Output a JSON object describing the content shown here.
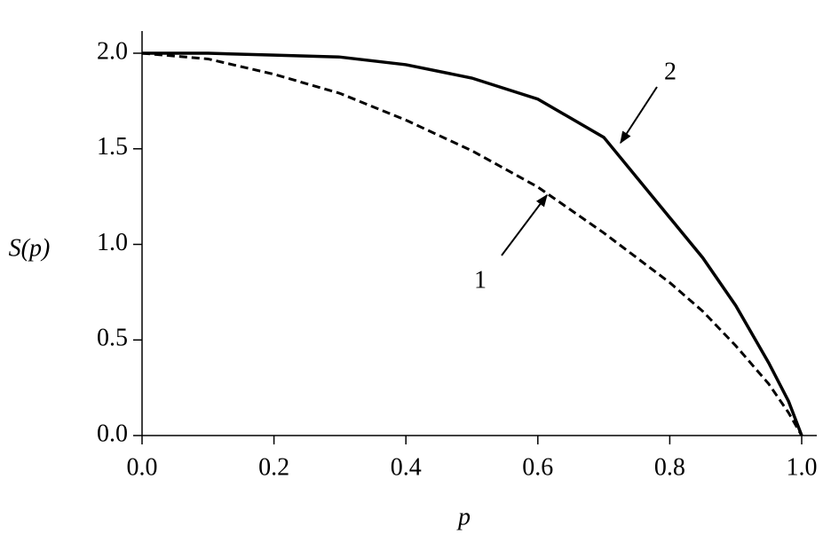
{
  "chart_data": {
    "type": "line",
    "x_label": "p",
    "y_label": "S(p)",
    "x": [
      0,
      0.1,
      0.2,
      0.3,
      0.4,
      0.5,
      0.6,
      0.7,
      0.8,
      0.85,
      0.9,
      0.95,
      0.98,
      1.0
    ],
    "series": [
      {
        "name": "1",
        "color": "#000000",
        "dashed": true,
        "values": [
          2.0,
          1.97,
          1.89,
          1.79,
          1.65,
          1.49,
          1.3,
          1.06,
          0.8,
          0.65,
          0.47,
          0.27,
          0.12,
          0
        ]
      },
      {
        "name": "2",
        "color": "#000000",
        "dashed": false,
        "values": [
          2.0,
          2.0,
          1.99,
          1.98,
          1.94,
          1.87,
          1.76,
          1.56,
          1.14,
          0.93,
          0.68,
          0.38,
          0.18,
          0
        ]
      }
    ],
    "xlim": [
      0,
      1.0
    ],
    "ylim": [
      0,
      2.0
    ],
    "xticks": [
      {
        "value": 0,
        "label": "0.0"
      },
      0.2,
      0.4,
      0.6,
      0.8,
      {
        "value": 1.0,
        "label": "1.0"
      }
    ],
    "yticks": [
      {
        "value": 0,
        "label": "0.0"
      },
      0.5,
      {
        "value": 1.0,
        "label": "1.0"
      },
      1.5,
      {
        "value": 2.0,
        "label": "2.0"
      }
    ],
    "grid": false
  }
}
